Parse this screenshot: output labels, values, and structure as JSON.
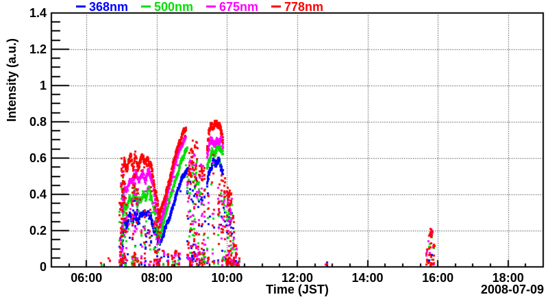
{
  "chart_data": {
    "type": "scatter",
    "title": "",
    "xlabel": "Time (JST)",
    "ylabel": "Intensity (a.u.)",
    "date_label": "2008-07-09",
    "marker": "square",
    "grid": {
      "style": "dotted",
      "color": "#000000"
    },
    "x_axis": {
      "t_min": 5,
      "t_max": 19,
      "minor_step_hours": 0.5,
      "major_ticks": [
        {
          "t": 6,
          "label": "06:00"
        },
        {
          "t": 8,
          "label": "08:00"
        },
        {
          "t": 10,
          "label": "10:00"
        },
        {
          "t": 12,
          "label": "12:00"
        },
        {
          "t": 14,
          "label": "14:00"
        },
        {
          "t": 16,
          "label": "16:00"
        },
        {
          "t": 18,
          "label": "18:00"
        }
      ]
    },
    "y_axis": {
      "v_min": 0,
      "v_max": 1.4,
      "minor_step": 0.05,
      "major_ticks": [
        {
          "v": 0,
          "label": "0"
        },
        {
          "v": 0.2,
          "label": "0.2"
        },
        {
          "v": 0.4,
          "label": "0.4"
        },
        {
          "v": 0.6,
          "label": "0.6"
        },
        {
          "v": 0.8,
          "label": "0.8"
        },
        {
          "v": 1,
          "label": "1"
        },
        {
          "v": 1.2,
          "label": "1.2"
        },
        {
          "v": 1.4,
          "label": "1.4"
        }
      ]
    },
    "series": [
      {
        "name": "368nm",
        "color": "#0000ff",
        "vscale": 0.72,
        "noise_weight": 0.55,
        "segments": [
          {
            "jitter": 0.014,
            "density": 210,
            "outlier_prob": 0.07,
            "outlier_depth": 0.22,
            "wander": 1,
            "pts": [
              [
                6.98,
                0.02
              ],
              [
                7.03,
                0.18
              ],
              [
                7.08,
                0.24
              ],
              [
                7.15,
                0.22
              ],
              [
                7.22,
                0.28
              ],
              [
                7.3,
                0.26
              ],
              [
                7.38,
                0.3
              ],
              [
                7.45,
                0.26
              ],
              [
                7.52,
                0.28
              ],
              [
                7.6,
                0.3
              ],
              [
                7.68,
                0.27
              ],
              [
                7.75,
                0.3
              ],
              [
                7.82,
                0.28
              ],
              [
                7.9,
                0.23
              ],
              [
                7.98,
                0.19
              ],
              [
                8.05,
                0.14
              ],
              [
                8.1,
                0.125
              ]
            ]
          },
          {
            "jitter": 0.011,
            "density": 290,
            "outlier_prob": 0.02,
            "outlier_depth": 0.1,
            "wander": 0.5,
            "pts": [
              [
                8.1,
                0.125
              ],
              [
                8.2,
                0.19
              ],
              [
                8.3,
                0.25
              ],
              [
                8.4,
                0.31
              ],
              [
                8.5,
                0.37
              ],
              [
                8.6,
                0.43
              ],
              [
                8.7,
                0.48
              ],
              [
                8.8,
                0.52
              ],
              [
                8.9,
                0.545
              ]
            ]
          },
          {
            "jitter": 0.016,
            "density": 210,
            "outlier_prob": 0.05,
            "outlier_depth": 0.3,
            "wander": 1,
            "pts": [
              [
                9.42,
                0.47
              ],
              [
                9.5,
                0.54
              ],
              [
                9.58,
                0.57
              ],
              [
                9.66,
                0.56
              ],
              [
                9.74,
                0.58
              ],
              [
                9.82,
                0.56
              ],
              [
                9.88,
                0.53
              ]
            ]
          }
        ]
      },
      {
        "name": "500nm",
        "color": "#00e000",
        "vscale": 0.84,
        "noise_weight": 0.75,
        "segments": [
          {
            "jitter": 0.014,
            "density": 210,
            "outlier_prob": 0.07,
            "outlier_depth": 0.22,
            "wander": 1,
            "pts": [
              [
                6.97,
                0.03
              ],
              [
                7.03,
                0.28
              ],
              [
                7.08,
                0.36
              ],
              [
                7.15,
                0.33
              ],
              [
                7.22,
                0.38
              ],
              [
                7.3,
                0.36
              ],
              [
                7.38,
                0.41
              ],
              [
                7.45,
                0.36
              ],
              [
                7.52,
                0.38
              ],
              [
                7.6,
                0.41
              ],
              [
                7.68,
                0.38
              ],
              [
                7.75,
                0.42
              ],
              [
                7.82,
                0.39
              ],
              [
                7.9,
                0.32
              ],
              [
                7.98,
                0.26
              ],
              [
                8.05,
                0.2
              ],
              [
                8.09,
                0.18
              ]
            ]
          },
          {
            "jitter": 0.011,
            "density": 290,
            "outlier_prob": 0.02,
            "outlier_depth": 0.1,
            "wander": 0.5,
            "pts": [
              [
                8.09,
                0.18
              ],
              [
                8.2,
                0.26
              ],
              [
                8.3,
                0.33
              ],
              [
                8.4,
                0.4
              ],
              [
                8.5,
                0.47
              ],
              [
                8.6,
                0.53
              ],
              [
                8.7,
                0.59
              ],
              [
                8.78,
                0.62
              ],
              [
                8.86,
                0.645
              ]
            ]
          },
          {
            "jitter": 0.016,
            "density": 210,
            "outlier_prob": 0.05,
            "outlier_depth": 0.3,
            "wander": 1,
            "pts": [
              [
                9.42,
                0.54
              ],
              [
                9.5,
                0.62
              ],
              [
                9.58,
                0.65
              ],
              [
                9.66,
                0.64
              ],
              [
                9.74,
                0.66
              ],
              [
                9.82,
                0.64
              ],
              [
                9.88,
                0.6
              ]
            ]
          }
        ]
      },
      {
        "name": "675nm",
        "color": "#ff00ff",
        "vscale": 0.93,
        "noise_weight": 0.9,
        "segments": [
          {
            "jitter": 0.015,
            "density": 215,
            "outlier_prob": 0.08,
            "outlier_depth": 0.25,
            "wander": 1,
            "pts": [
              [
                6.96,
                0.04
              ],
              [
                7.02,
                0.35
              ],
              [
                7.07,
                0.46
              ],
              [
                7.14,
                0.42
              ],
              [
                7.21,
                0.5
              ],
              [
                7.3,
                0.47
              ],
              [
                7.38,
                0.52
              ],
              [
                7.45,
                0.46
              ],
              [
                7.52,
                0.49
              ],
              [
                7.6,
                0.52
              ],
              [
                7.68,
                0.49
              ],
              [
                7.75,
                0.54
              ],
              [
                7.82,
                0.5
              ],
              [
                7.9,
                0.42
              ],
              [
                7.98,
                0.33
              ],
              [
                8.05,
                0.25
              ],
              [
                8.08,
                0.23
              ]
            ]
          },
          {
            "jitter": 0.011,
            "density": 290,
            "outlier_prob": 0.02,
            "outlier_depth": 0.1,
            "wander": 0.5,
            "pts": [
              [
                8.08,
                0.23
              ],
              [
                8.2,
                0.32
              ],
              [
                8.3,
                0.4
              ],
              [
                8.4,
                0.48
              ],
              [
                8.5,
                0.56
              ],
              [
                8.6,
                0.63
              ],
              [
                8.7,
                0.68
              ],
              [
                8.76,
                0.7
              ],
              [
                8.82,
                0.715
              ]
            ]
          },
          {
            "jitter": 0.017,
            "density": 215,
            "outlier_prob": 0.06,
            "outlier_depth": 0.3,
            "wander": 1,
            "pts": [
              [
                9.42,
                0.6
              ],
              [
                9.5,
                0.68
              ],
              [
                9.58,
                0.7
              ],
              [
                9.66,
                0.69
              ],
              [
                9.74,
                0.715
              ],
              [
                9.82,
                0.7
              ],
              [
                9.88,
                0.66
              ]
            ]
          }
        ]
      },
      {
        "name": "778nm",
        "color": "#ff0000",
        "vscale": 1.0,
        "noise_weight": 1.25,
        "segments": [
          {
            "jitter": 0.017,
            "density": 225,
            "outlier_prob": 0.09,
            "outlier_depth": 0.28,
            "wander": 1,
            "pts": [
              [
                6.95,
                0.05
              ],
              [
                7.01,
                0.42
              ],
              [
                7.06,
                0.58
              ],
              [
                7.12,
                0.52
              ],
              [
                7.18,
                0.58
              ],
              [
                7.25,
                0.62
              ],
              [
                7.32,
                0.56
              ],
              [
                7.38,
                0.63
              ],
              [
                7.45,
                0.55
              ],
              [
                7.52,
                0.57
              ],
              [
                7.6,
                0.6
              ],
              [
                7.68,
                0.57
              ],
              [
                7.75,
                0.61
              ],
              [
                7.82,
                0.57
              ],
              [
                7.9,
                0.49
              ],
              [
                7.98,
                0.38
              ],
              [
                8.04,
                0.29
              ],
              [
                8.07,
                0.28
              ]
            ]
          },
          {
            "jitter": 0.012,
            "density": 300,
            "outlier_prob": 0.02,
            "outlier_depth": 0.12,
            "wander": 0.5,
            "pts": [
              [
                8.07,
                0.28
              ],
              [
                8.2,
                0.37
              ],
              [
                8.3,
                0.45
              ],
              [
                8.4,
                0.52
              ],
              [
                8.5,
                0.6
              ],
              [
                8.6,
                0.66
              ],
              [
                8.68,
                0.71
              ],
              [
                8.76,
                0.755
              ],
              [
                8.82,
                0.775
              ]
            ]
          },
          {
            "jitter": 0.018,
            "density": 225,
            "outlier_prob": 0.06,
            "outlier_depth": 0.32,
            "wander": 1,
            "pts": [
              [
                9.42,
                0.66
              ],
              [
                9.48,
                0.74
              ],
              [
                9.55,
                0.78
              ],
              [
                9.62,
                0.76
              ],
              [
                9.7,
                0.8
              ],
              [
                9.78,
                0.785
              ],
              [
                9.84,
                0.75
              ],
              [
                9.88,
                0.72
              ]
            ]
          }
        ]
      }
    ],
    "noise_columns": [
      {
        "t": 6.42,
        "vmax": 0.03,
        "counts": {
          "500nm": 1,
          "778nm": 1
        }
      },
      {
        "t": 6.65,
        "vmax": 0.05,
        "counts": {
          "675nm": 1,
          "778nm": 2
        }
      },
      {
        "t": 6.95,
        "vmax": 0.45,
        "n": 8
      },
      {
        "t": 7.0,
        "vmax": 0.6,
        "n": 13
      },
      {
        "t": 7.06,
        "vmax": 0.55,
        "n": 11
      },
      {
        "t": 7.12,
        "vmax": 0.35,
        "n": 5
      },
      {
        "t": 7.3,
        "vmax": 0.48,
        "n": 9
      },
      {
        "t": 7.36,
        "vmax": 0.55,
        "n": 11
      },
      {
        "t": 7.44,
        "vmax": 0.45,
        "n": 7
      },
      {
        "t": 7.56,
        "vmax": 0.22,
        "n": 4
      },
      {
        "t": 7.66,
        "vmax": 0.28,
        "n": 5
      },
      {
        "t": 7.8,
        "vmax": 0.22,
        "n": 4
      },
      {
        "t": 7.93,
        "vmax": 0.3,
        "n": 6
      },
      {
        "t": 8.0,
        "vmax": 0.28,
        "n": 9
      },
      {
        "t": 8.06,
        "vmax": 0.24,
        "n": 7
      },
      {
        "t": 8.18,
        "vmax": 0.1,
        "n": 3
      },
      {
        "t": 8.32,
        "vmax": 0.08,
        "n": 3
      },
      {
        "t": 8.44,
        "vmax": 0.07,
        "n": 3
      },
      {
        "t": 8.52,
        "vmax": 0.1,
        "n": 4
      },
      {
        "t": 8.62,
        "vmax": 0.08,
        "n": 3
      },
      {
        "t": 8.88,
        "vmax": 0.6,
        "n": 9
      },
      {
        "t": 8.94,
        "vmax": 0.66,
        "n": 12
      },
      {
        "t": 9.0,
        "vmax": 0.72,
        "n": 13
      },
      {
        "t": 9.06,
        "vmax": 0.68,
        "n": 11
      },
      {
        "t": 9.12,
        "vmax": 0.72,
        "n": 13
      },
      {
        "t": 9.2,
        "vmax": 0.58,
        "n": 10
      },
      {
        "t": 9.28,
        "vmax": 0.62,
        "n": 12
      },
      {
        "t": 9.34,
        "vmax": 0.55,
        "n": 9
      },
      {
        "t": 9.45,
        "vmax": 0.4,
        "n": 5
      },
      {
        "t": 9.6,
        "vmax": 0.35,
        "n": 4
      },
      {
        "t": 9.75,
        "vmax": 0.42,
        "n": 6
      },
      {
        "t": 9.85,
        "vmax": 0.55,
        "n": 8
      },
      {
        "t": 9.92,
        "vmax": 0.5,
        "n": 8
      },
      {
        "t": 9.99,
        "vmax": 0.45,
        "n": 12
      },
      {
        "t": 10.05,
        "vmax": 0.46,
        "n": 14
      },
      {
        "t": 10.11,
        "vmax": 0.42,
        "n": 12
      },
      {
        "t": 10.17,
        "vmax": 0.3,
        "n": 8
      },
      {
        "t": 10.24,
        "vmax": 0.12,
        "n": 5
      },
      {
        "t": 10.32,
        "vmax": 0.05,
        "n": 3
      },
      {
        "t": 12.82,
        "vmax": 0.035,
        "counts": {
          "368nm": 2,
          "778nm": 2
        }
      },
      {
        "t": 15.68,
        "vmax": 0.1,
        "counts": {
          "675nm": 2,
          "778nm": 5
        }
      },
      {
        "t": 15.75,
        "vmax": 0.18,
        "counts": {
          "368nm": 1,
          "500nm": 2,
          "675nm": 3,
          "778nm": 8
        }
      },
      {
        "t": 15.81,
        "vmax": 0.21,
        "counts": {
          "368nm": 2,
          "500nm": 3,
          "675nm": 5,
          "778nm": 14
        }
      },
      {
        "t": 15.87,
        "vmax": 0.14,
        "counts": {
          "500nm": 2,
          "675nm": 2,
          "778nm": 7
        }
      }
    ]
  }
}
